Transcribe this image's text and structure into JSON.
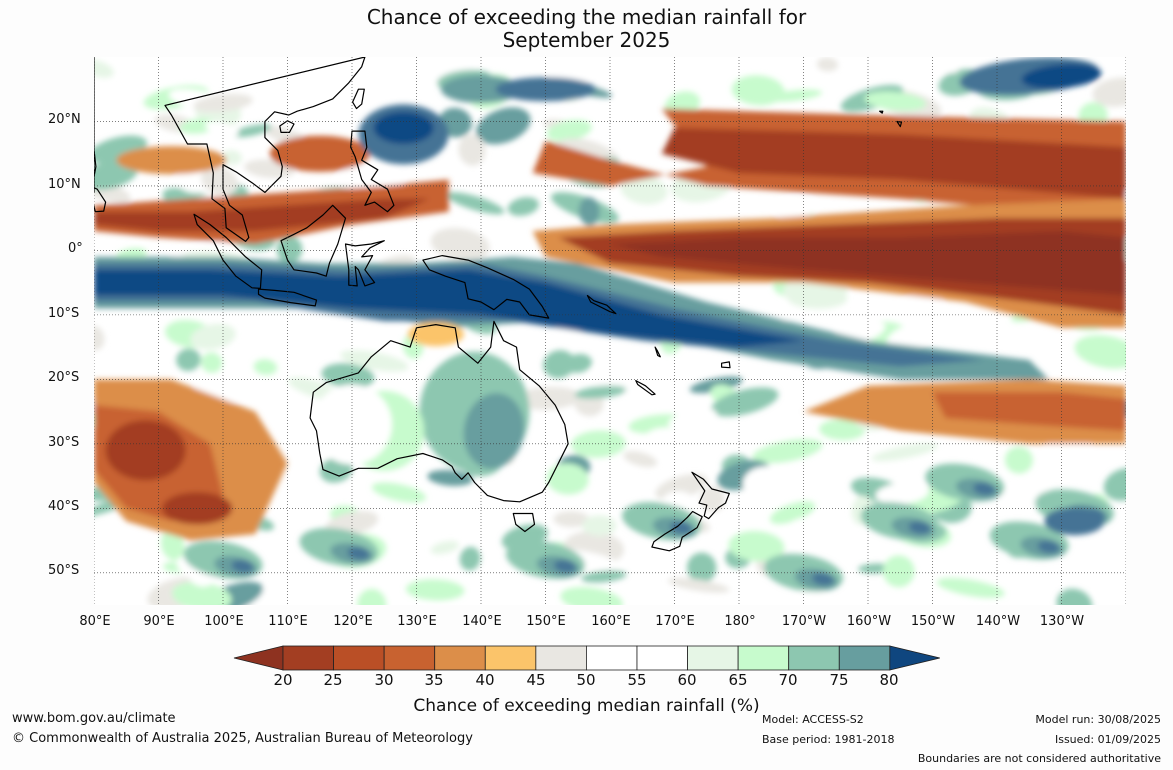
{
  "title": {
    "line1": "Chance of exceeding the median rainfall for",
    "line2": "September 2025"
  },
  "map": {
    "lat_labels": [
      "20°N",
      "10°N",
      "0°",
      "10°S",
      "20°S",
      "30°S",
      "40°S",
      "50°S"
    ],
    "lon_labels": [
      "80°E",
      "90°E",
      "100°E",
      "110°E",
      "120°E",
      "130°E",
      "140°E",
      "150°E",
      "160°E",
      "170°E",
      "180°",
      "170°W",
      "160°W",
      "150°W",
      "140°W",
      "130°W"
    ],
    "lat_range": [
      -55,
      30
    ],
    "lon_range": [
      80,
      240
    ],
    "projection": "equirectangular",
    "grid": true,
    "regions": {
      "equatorial_central_pacific": "20-25 (very dry)",
      "northern_tropical_pacific_band": "20-30",
      "maritime_continent_and_west_pacific_band": "75-80 (very wet)",
      "eastern_australia": "60-75",
      "western_australia": "45-55",
      "eastern_indian_ocean_south": "25-35",
      "southern_ocean": "55-70"
    }
  },
  "legend": {
    "ticks": [
      "20",
      "25",
      "30",
      "35",
      "40",
      "45",
      "50",
      "55",
      "60",
      "65",
      "70",
      "75",
      "80"
    ],
    "colors": [
      "#a33e22",
      "#ba4f26",
      "#c86230",
      "#dc8e49",
      "#fbc46a",
      "#e9e7e2",
      "#ffffff",
      "#ffffff",
      "#e6f6e6",
      "#c7fbcd",
      "#8dc7b0",
      "#679e9f",
      "#447395",
      "#114984"
    ],
    "extend_low_color": "#8e3220",
    "extend_high_color": "#0f467f",
    "title": "Chance of exceeding median rainfall (%)"
  },
  "footer": {
    "url": "www.bom.gov.au/climate",
    "copyright": "© Commonwealth of Australia 2025, Australian Bureau of Meteorology",
    "model": "Model: ACCESS-S2",
    "base_period": "Base period: 1981-2018",
    "model_run": "Model run: 30/08/2025",
    "issued": "Issued: 01/09/2025",
    "disclaimer": "Boundaries are not considered authoritative"
  }
}
